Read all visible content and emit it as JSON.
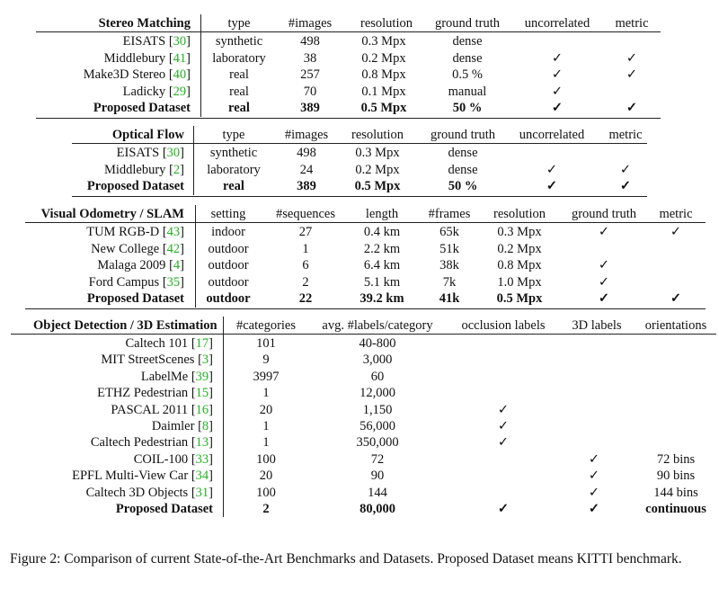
{
  "stereo": {
    "headers": [
      "Stereo Matching",
      "type",
      "#images",
      "resolution",
      "ground truth",
      "uncorrelated",
      "metric"
    ],
    "rows": [
      {
        "name": "EISATS",
        "ref": "30",
        "type": "synthetic",
        "images": "498",
        "resolution": "0.3 Mpx",
        "gt": "dense",
        "uncorrelated": "",
        "metric": ""
      },
      {
        "name": "Middlebury",
        "ref": "41",
        "type": "laboratory",
        "images": "38",
        "resolution": "0.2 Mpx",
        "gt": "dense",
        "uncorrelated": "✓",
        "metric": "✓"
      },
      {
        "name": "Make3D Stereo",
        "ref": "40",
        "type": "real",
        "images": "257",
        "resolution": "0.8 Mpx",
        "gt": "0.5 %",
        "uncorrelated": "✓",
        "metric": "✓"
      },
      {
        "name": "Ladicky",
        "ref": "29",
        "type": "real",
        "images": "70",
        "resolution": "0.1 Mpx",
        "gt": "manual",
        "uncorrelated": "✓",
        "metric": ""
      },
      {
        "name": "Proposed Dataset",
        "ref": "",
        "type": "real",
        "images": "389",
        "resolution": "0.5 Mpx",
        "gt": "50 %",
        "uncorrelated": "✓",
        "metric": "✓",
        "bold": true
      }
    ]
  },
  "flow": {
    "headers": [
      "Optical Flow",
      "type",
      "#images",
      "resolution",
      "ground truth",
      "uncorrelated",
      "metric"
    ],
    "rows": [
      {
        "name": "EISATS",
        "ref": "30",
        "type": "synthetic",
        "images": "498",
        "resolution": "0.3 Mpx",
        "gt": "dense",
        "uncorrelated": "",
        "metric": ""
      },
      {
        "name": "Middlebury",
        "ref": "2",
        "type": "laboratory",
        "images": "24",
        "resolution": "0.2 Mpx",
        "gt": "dense",
        "uncorrelated": "✓",
        "metric": "✓"
      },
      {
        "name": "Proposed Dataset",
        "ref": "",
        "type": "real",
        "images": "389",
        "resolution": "0.5 Mpx",
        "gt": "50 %",
        "uncorrelated": "✓",
        "metric": "✓",
        "bold": true
      }
    ]
  },
  "vo": {
    "headers": [
      "Visual Odometry / SLAM",
      "setting",
      "#sequences",
      "length",
      "#frames",
      "resolution",
      "ground truth",
      "metric"
    ],
    "rows": [
      {
        "name": "TUM RGB-D",
        "ref": "43",
        "setting": "indoor",
        "sequences": "27",
        "length": "0.4 km",
        "frames": "65k",
        "resolution": "0.3 Mpx",
        "gt": "✓",
        "metric": "✓"
      },
      {
        "name": "New College",
        "ref": "42",
        "setting": "outdoor",
        "sequences": "1",
        "length": "2.2 km",
        "frames": "51k",
        "resolution": "0.2 Mpx",
        "gt": "",
        "metric": ""
      },
      {
        "name": "Malaga 2009",
        "ref": "4",
        "setting": "outdoor",
        "sequences": "6",
        "length": "6.4 km",
        "frames": "38k",
        "resolution": "0.8 Mpx",
        "gt": "✓",
        "metric": ""
      },
      {
        "name": "Ford Campus",
        "ref": "35",
        "setting": "outdoor",
        "sequences": "2",
        "length": "5.1 km",
        "frames": "7k",
        "resolution": "1.0 Mpx",
        "gt": "✓",
        "metric": ""
      },
      {
        "name": "Proposed Dataset",
        "ref": "",
        "setting": "outdoor",
        "sequences": "22",
        "length": "39.2 km",
        "frames": "41k",
        "resolution": "0.5 Mpx",
        "gt": "✓",
        "metric": "✓",
        "bold": true
      }
    ]
  },
  "od": {
    "headers": [
      "Object Detection / 3D Estimation",
      "#categories",
      "avg. #labels/category",
      "occlusion labels",
      "3D labels",
      "orientations"
    ],
    "rows": [
      {
        "name": "Caltech 101",
        "ref": "17",
        "categories": "101",
        "labels": "40-800",
        "occlusion": "",
        "labels3d": "",
        "orientations": ""
      },
      {
        "name": "MIT StreetScenes",
        "ref": "3",
        "categories": "9",
        "labels": "3,000",
        "occlusion": "",
        "labels3d": "",
        "orientations": ""
      },
      {
        "name": "LabelMe",
        "ref": "39",
        "categories": "3997",
        "labels": "60",
        "occlusion": "",
        "labels3d": "",
        "orientations": ""
      },
      {
        "name": "ETHZ Pedestrian",
        "ref": "15",
        "categories": "1",
        "labels": "12,000",
        "occlusion": "",
        "labels3d": "",
        "orientations": ""
      },
      {
        "name": "PASCAL 2011",
        "ref": "16",
        "categories": "20",
        "labels": "1,150",
        "occlusion": "✓",
        "labels3d": "",
        "orientations": ""
      },
      {
        "name": "Daimler",
        "ref": "8",
        "categories": "1",
        "labels": "56,000",
        "occlusion": "✓",
        "labels3d": "",
        "orientations": ""
      },
      {
        "name": "Caltech Pedestrian",
        "ref": "13",
        "categories": "1",
        "labels": "350,000",
        "occlusion": "✓",
        "labels3d": "",
        "orientations": ""
      },
      {
        "name": "COIL-100",
        "ref": "33",
        "categories": "100",
        "labels": "72",
        "occlusion": "",
        "labels3d": "✓",
        "orientations": "72 bins"
      },
      {
        "name": "EPFL Multi-View Car",
        "ref": "34",
        "categories": "20",
        "labels": "90",
        "occlusion": "",
        "labels3d": "✓",
        "orientations": "90 bins"
      },
      {
        "name": "Caltech 3D Objects",
        "ref": "31",
        "categories": "100",
        "labels": "144",
        "occlusion": "",
        "labels3d": "✓",
        "orientations": "144 bins"
      },
      {
        "name": "Proposed Dataset",
        "ref": "",
        "categories": "2",
        "labels": "80,000",
        "occlusion": "✓",
        "labels3d": "✓",
        "orientations": "continuous",
        "bold": true
      }
    ]
  },
  "caption": "Figure 2: Comparison of current State-of-the-Art Benchmarks and Datasets. Proposed Dataset means KITTI benchmark."
}
